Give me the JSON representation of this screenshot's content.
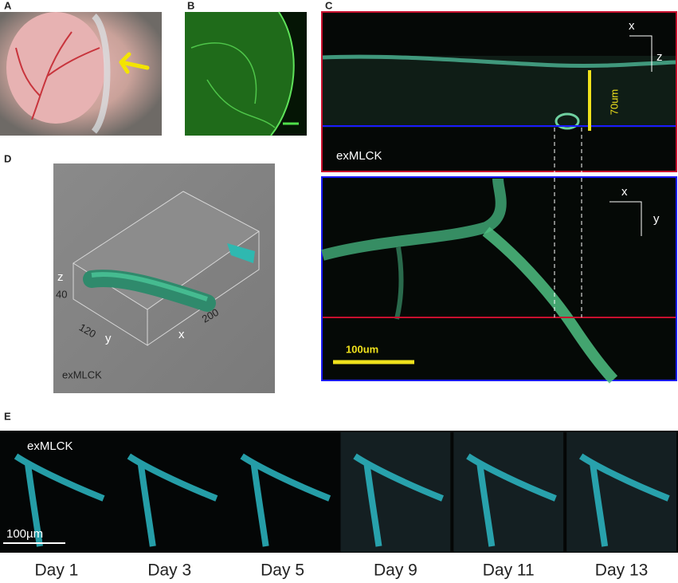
{
  "panels": {
    "a": {
      "label": "A"
    },
    "b": {
      "label": "B"
    },
    "c": {
      "label": "C",
      "top": {
        "axis_x": "x",
        "axis_z": "z",
        "scale": "70um",
        "marker": "exMLCK"
      },
      "bottom": {
        "axis_x": "x",
        "axis_y": "y",
        "scale": "100um"
      }
    },
    "d": {
      "label": "D",
      "axis_z": "z",
      "z_value": "40",
      "y_value": "120",
      "axis_y": "y",
      "axis_x": "x",
      "x_value": "200",
      "marker": "exMLCK"
    },
    "e": {
      "label": "E",
      "marker": "exMLCK",
      "scale": "100µm",
      "days": [
        "Day 1",
        "Day 3",
        "Day 5",
        "Day 9",
        "Day 11",
        "Day 13"
      ]
    }
  }
}
